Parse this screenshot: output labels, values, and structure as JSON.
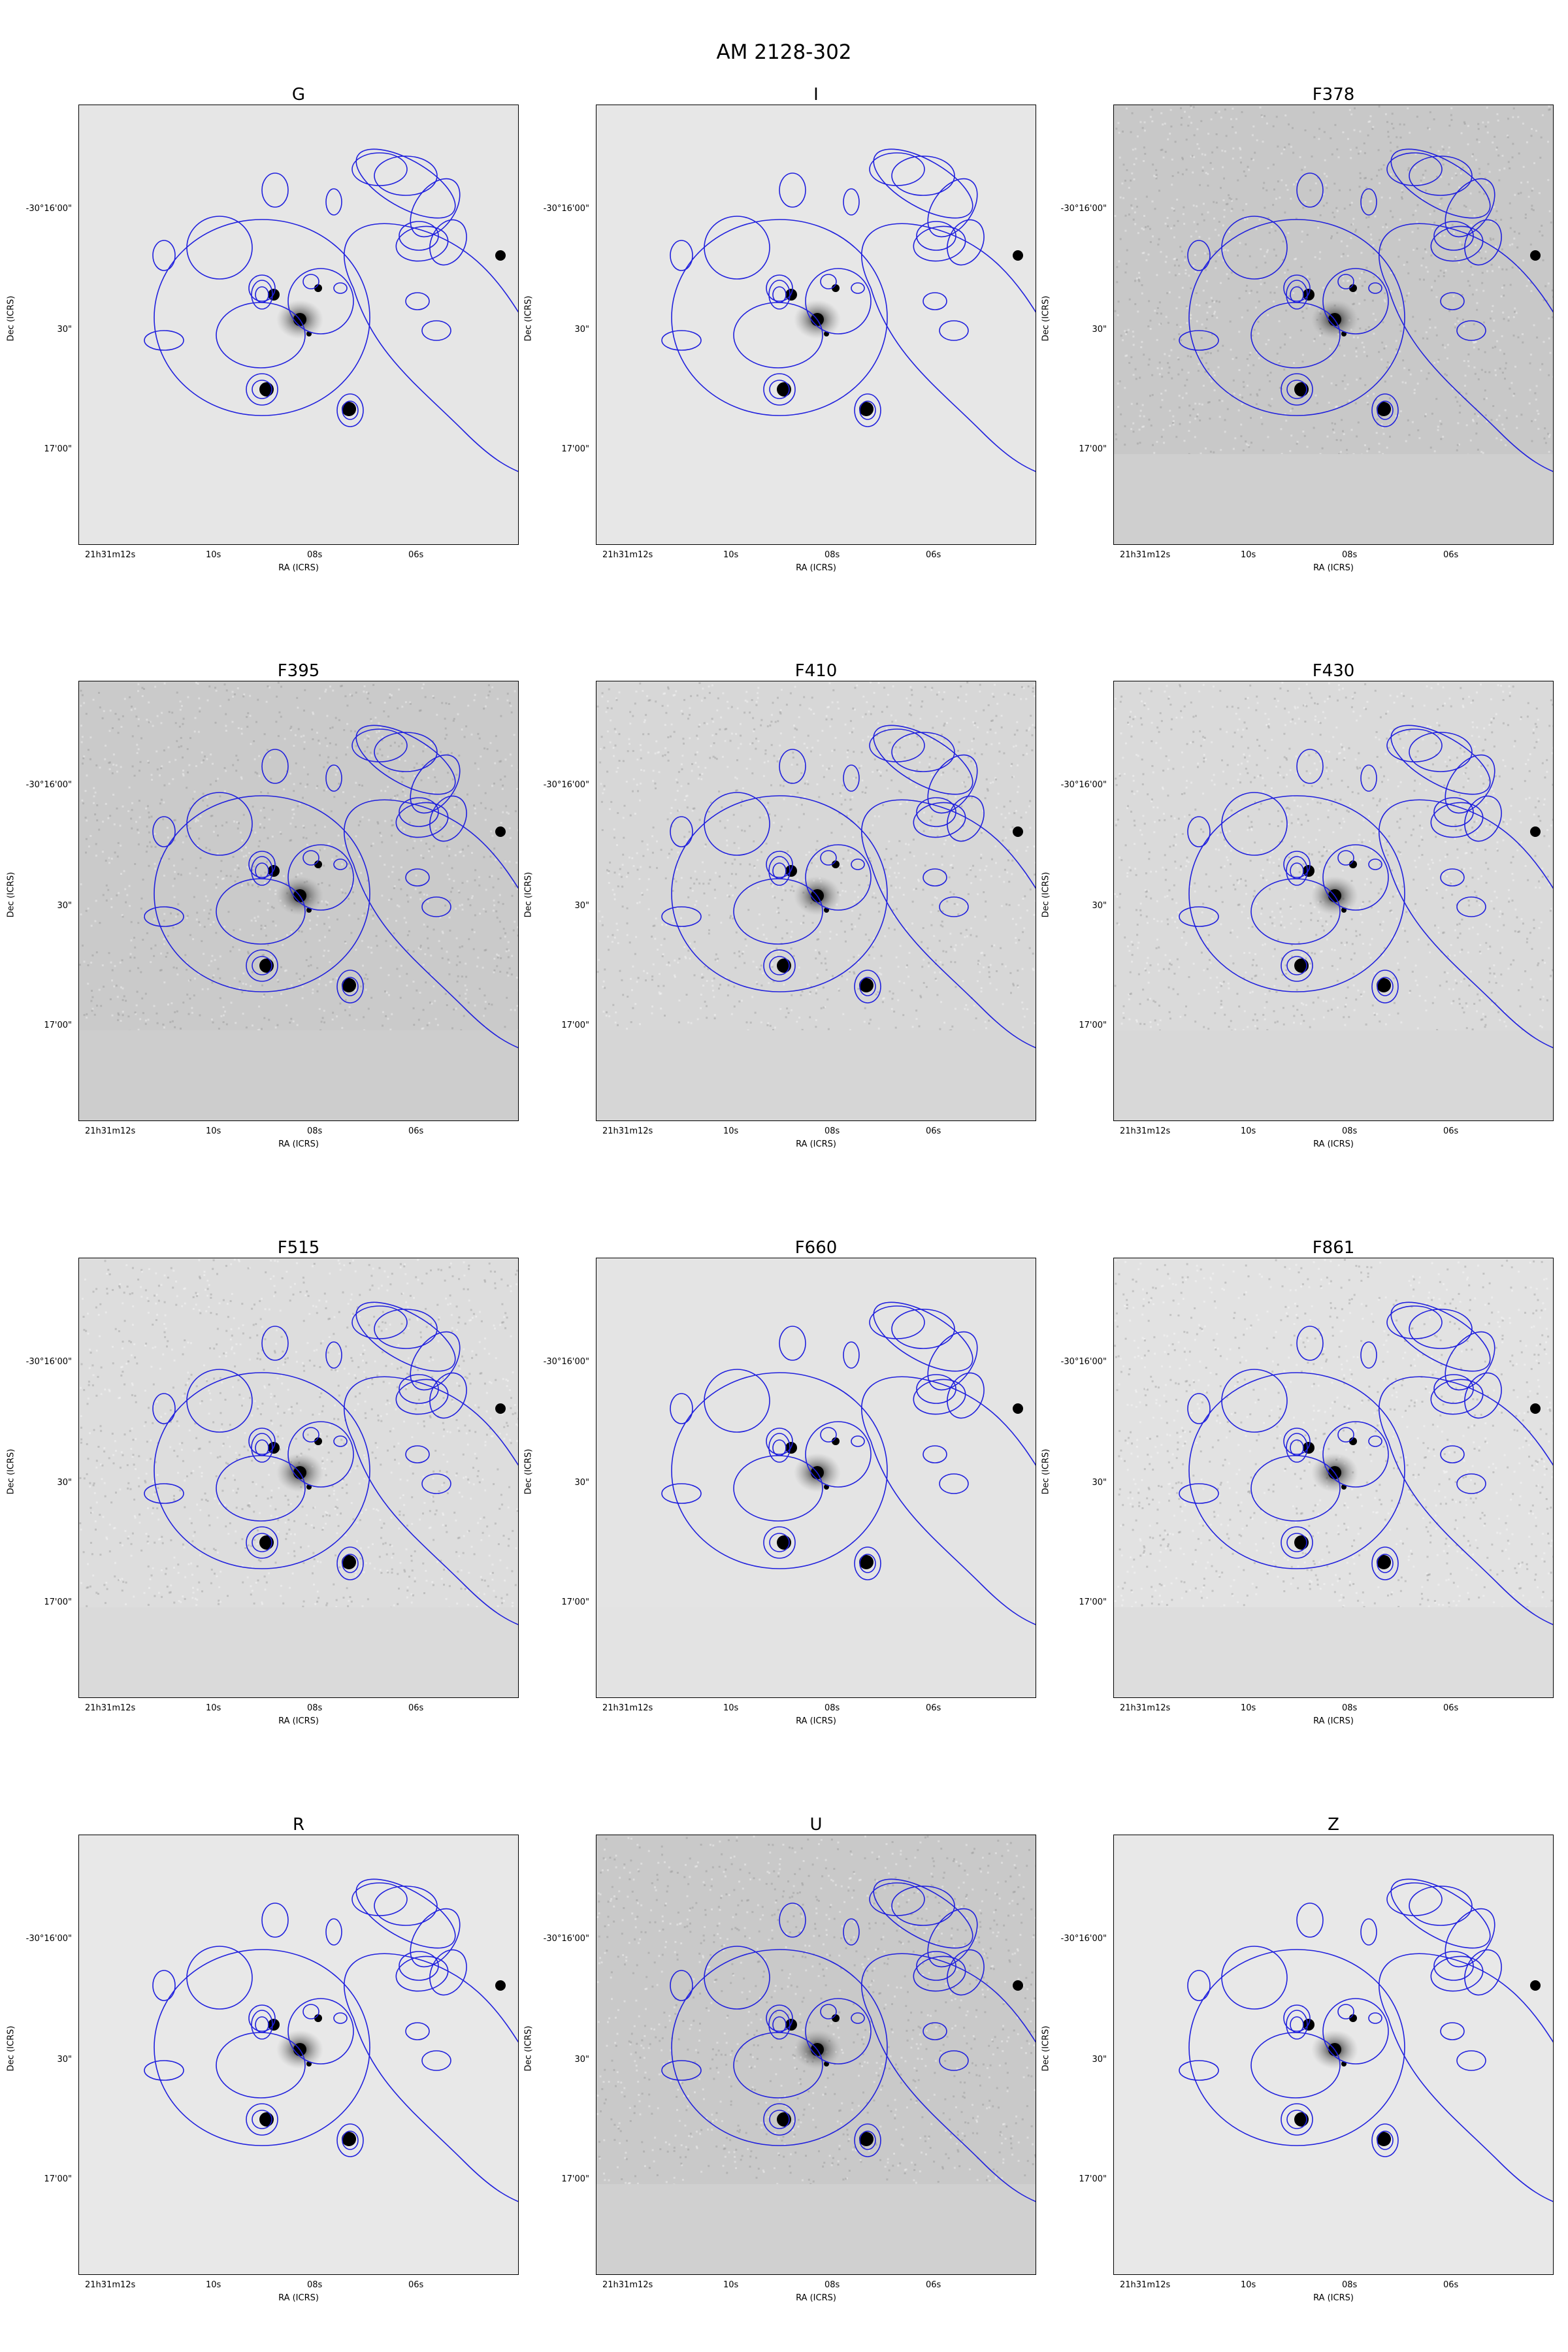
{
  "figure": {
    "title": "AM 2128-302"
  },
  "axis_labels": {
    "x": "RA (ICRS)",
    "y": "Dec (ICRS)"
  },
  "x_ticks": [
    "21h31m12s",
    "10s",
    "08s",
    "06s"
  ],
  "y_ticks": [
    "-30°16'00\"",
    "30\"",
    "17'00\""
  ],
  "colors": {
    "ellipse": "#2020dd",
    "sky": "#e2e2e2",
    "star": "#000000"
  },
  "panels": [
    {
      "title": "G",
      "background": "smooth",
      "shade": "#e6e6e6",
      "masked": "#e6e6e6"
    },
    {
      "title": "I",
      "background": "smooth",
      "shade": "#e7e7e7",
      "masked": "#e7e7e7"
    },
    {
      "title": "F378",
      "background": "noisy",
      "shade": "#c8c8c8",
      "masked": "#cfcfcf"
    },
    {
      "title": "F395",
      "background": "noisy",
      "shade": "#cacaca",
      "masked": "#cdcdcd"
    },
    {
      "title": "F410",
      "background": "noisy",
      "shade": "#d7d7d7",
      "masked": "#d6d6d6"
    },
    {
      "title": "F430",
      "background": "noisy",
      "shade": "#dadada",
      "masked": "#d8d8d8"
    },
    {
      "title": "F515",
      "background": "noisy",
      "shade": "#dddddd",
      "masked": "#dadada"
    },
    {
      "title": "F660",
      "background": "smooth",
      "shade": "#e4e4e4",
      "masked": "#e3e3e3"
    },
    {
      "title": "F861",
      "background": "noisy",
      "shade": "#e2e2e2",
      "masked": "#dddddd"
    },
    {
      "title": "R",
      "background": "smooth",
      "shade": "#e8e8e8",
      "masked": "#e8e8e8"
    },
    {
      "title": "U",
      "background": "noisy",
      "shade": "#c9c9c9",
      "masked": "#d0d0d0"
    },
    {
      "title": "Z",
      "background": "smooth",
      "shade": "#e8e8e8",
      "masked": "#e8e8e8"
    }
  ]
}
